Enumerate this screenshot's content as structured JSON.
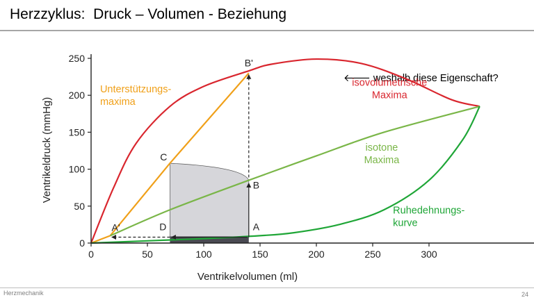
{
  "slide": {
    "title": "Herzzyklus:  Druck – Volumen - Beziehung",
    "footer_left": "Herzmechanik",
    "page_number": "24",
    "note": "🡐 weshalb diese Eigenschaft?"
  },
  "chart_data": {
    "type": "line",
    "title": "",
    "xlabel": "Ventrikelvolumen (ml)",
    "ylabel": "Ventrikeldruck (mmHg)",
    "xlim": [
      0,
      390
    ],
    "ylim": [
      0,
      250
    ],
    "xticks": [
      0,
      50,
      100,
      150,
      200,
      250,
      300
    ],
    "yticks": [
      0,
      50,
      100,
      150,
      200,
      250
    ],
    "grid": false,
    "legend": "none",
    "colors": {
      "isovolumetric": "#d9262e",
      "support": "#f0a019",
      "isotonic": "#7ab648",
      "rest": "#1fa637",
      "arrows": "#222222",
      "loop_fill": "#d6d6da",
      "loop_base": "#4a4a52"
    },
    "series": [
      {
        "name": "isovolumetrische Maxima",
        "x": [
          0,
          20,
          40,
          70,
          100,
          140,
          160,
          200,
          240,
          280,
          320,
          345
        ],
        "y": [
          0,
          75,
          135,
          185,
          212,
          233,
          242,
          249,
          243,
          222,
          194,
          185
        ]
      },
      {
        "name": "Unterstützungsmaxima",
        "x": [
          0,
          17,
          70,
          140
        ],
        "y": [
          0,
          10,
          108,
          230
        ]
      },
      {
        "name": "isotone Maxima",
        "x": [
          17,
          70,
          140,
          200,
          260,
          345
        ],
        "y": [
          10,
          45,
          85,
          118,
          150,
          185
        ]
      },
      {
        "name": "Ruhedehnungskurve",
        "x": [
          0,
          50,
          100,
          150,
          180,
          220,
          260,
          300,
          330,
          345
        ],
        "y": [
          0,
          3,
          6,
          10,
          14,
          25,
          45,
          85,
          140,
          185
        ]
      }
    ],
    "points": [
      {
        "label": "A",
        "x": 140,
        "y": 8
      },
      {
        "label": "B",
        "x": 140,
        "y": 85
      },
      {
        "label": "B'",
        "x": 140,
        "y": 230
      },
      {
        "label": "C",
        "x": 70,
        "y": 108
      },
      {
        "label": "D",
        "x": 70,
        "y": 8
      },
      {
        "label": "A'",
        "x": 17,
        "y": 8
      }
    ],
    "loop": {
      "ad_x": 70,
      "bc_x": 140,
      "base_y": 8,
      "c_y": 108,
      "b_y": 85
    },
    "annotations": [
      {
        "lines": [
          "isovolumetrische",
          "Maxima"
        ],
        "x": 265,
        "y": 213,
        "anchor": "middle",
        "series": "isovolumetric"
      },
      {
        "lines": [
          "Unterstützungs-",
          "maxima"
        ],
        "x": 8,
        "y": 204,
        "anchor": "start",
        "series": "support"
      },
      {
        "lines": [
          "isotone",
          "Maxima"
        ],
        "x": 258,
        "y": 125,
        "anchor": "middle",
        "series": "isotonic"
      },
      {
        "lines": [
          "Ruhedehnungs-",
          "kurve"
        ],
        "x": 268,
        "y": 40,
        "anchor": "start",
        "series": "rest"
      }
    ]
  }
}
